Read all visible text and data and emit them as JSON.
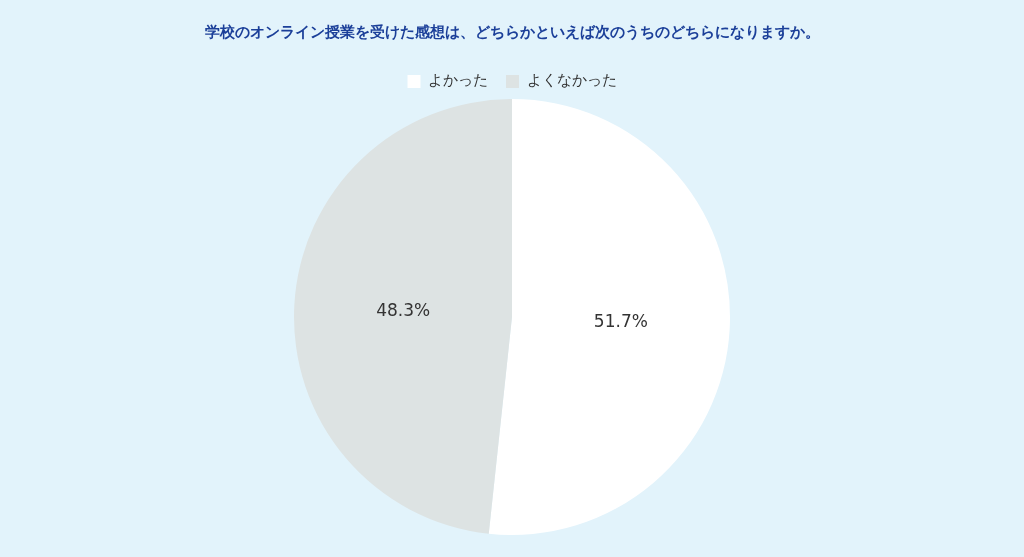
{
  "chart_data": {
    "type": "pie",
    "title": "学校のオンライン授業を受けた感想は、どちらかといえば次のうちのどちらになりますか。",
    "categories": [
      "よかった",
      "よくなかった"
    ],
    "values": [
      51.7,
      48.3
    ],
    "colors": [
      "#ffffff",
      "#dde3e3"
    ],
    "value_labels": [
      "51.7%",
      "48.3%"
    ],
    "legend": "top"
  }
}
